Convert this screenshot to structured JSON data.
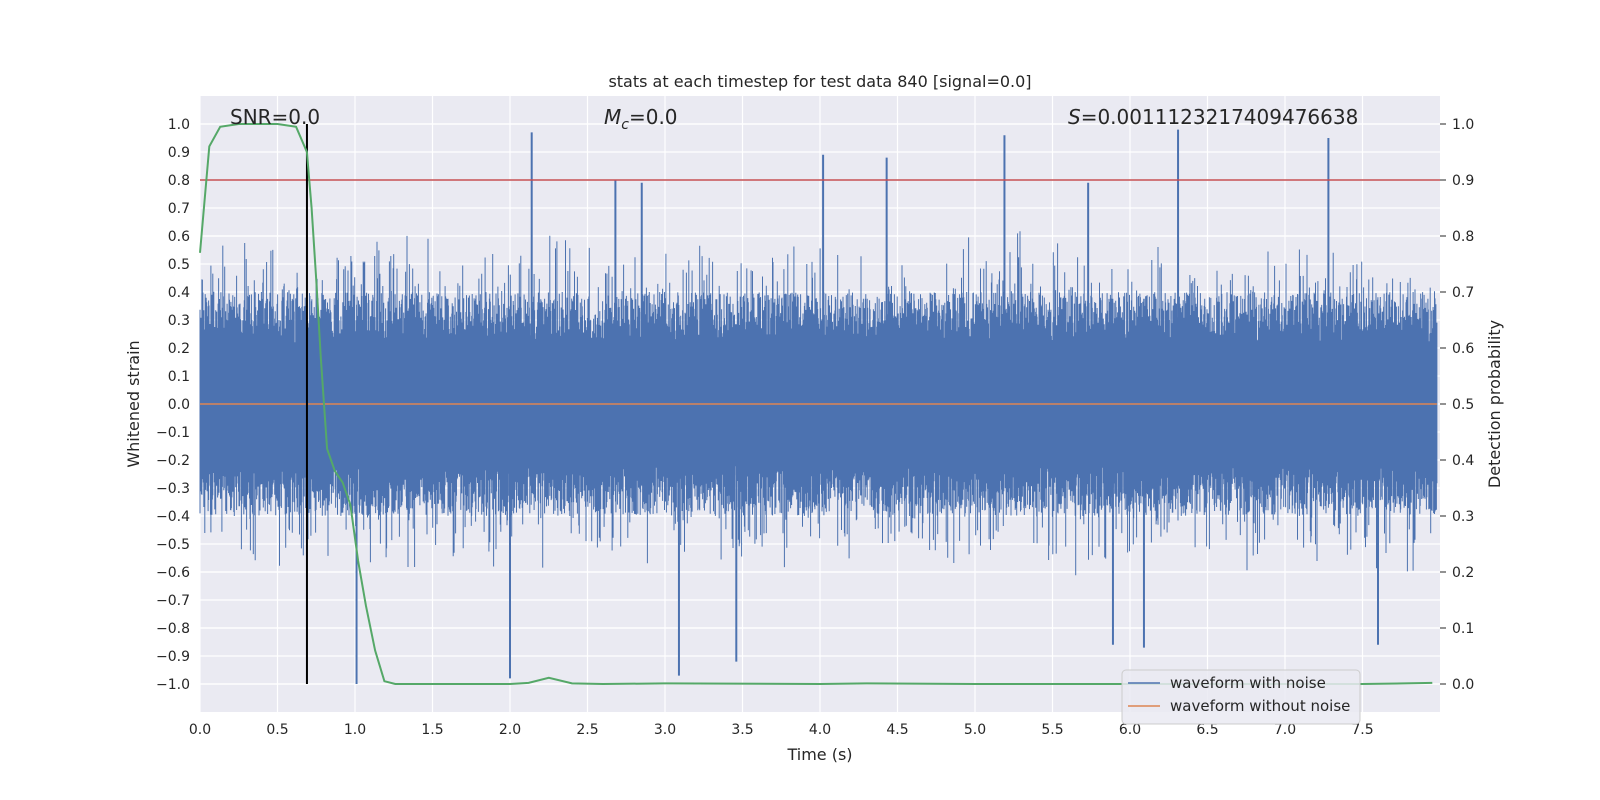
{
  "chart_data": {
    "type": "line",
    "title": "stats at each timestep for test data 840 [signal=0.0]",
    "xlabel": "Time (s)",
    "ylabel_left": "Whitened strain",
    "ylabel_right": "Detection probability",
    "xlim": [
      0.0,
      8.0
    ],
    "ylim_left": [
      -1.1,
      1.1
    ],
    "ylim_right": [
      -0.05,
      1.05
    ],
    "x_ticks": [
      "0.0",
      "0.5",
      "1.0",
      "1.5",
      "2.0",
      "2.5",
      "3.0",
      "3.5",
      "4.0",
      "4.5",
      "5.0",
      "5.5",
      "6.0",
      "6.5",
      "7.0",
      "7.5"
    ],
    "y_left_ticks": [
      "1.0",
      "0.9",
      "0.8",
      "0.7",
      "0.6",
      "0.5",
      "0.4",
      "0.3",
      "0.2",
      "0.1",
      "0.0",
      "−0.1",
      "−0.2",
      "−0.3",
      "−0.4",
      "−0.5",
      "−0.6",
      "−0.7",
      "−0.8",
      "−0.9",
      "−1.0"
    ],
    "y_right_ticks": [
      "1.0",
      "0.9",
      "0.8",
      "0.7",
      "0.6",
      "0.5",
      "0.4",
      "0.3",
      "0.2",
      "0.1",
      "0.0"
    ],
    "annotations": {
      "snr": "SNR=0.0",
      "mc_symbol": "M",
      "mc_sub": "c",
      "mc_value": "=0.0",
      "s_symbol": "S",
      "s_value": "=0.0011123217409476638"
    },
    "legend": {
      "location": "lower-right",
      "entries": [
        {
          "name": "waveform with noise",
          "color": "#4c72b0"
        },
        {
          "name": "waveform without noise",
          "color": "#dd8452"
        }
      ]
    },
    "series": [
      {
        "name": "waveform with noise",
        "axis": "left",
        "color": "#4c72b0",
        "description": "noisy whitened strain sampled densely over 0-8 s",
        "envelope_peaks": [
          {
            "x": 2.14,
            "y": 0.97
          },
          {
            "x": 2.68,
            "y": 0.8
          },
          {
            "x": 2.85,
            "y": 0.79
          },
          {
            "x": 4.02,
            "y": 0.89
          },
          {
            "x": 4.43,
            "y": 0.88
          },
          {
            "x": 5.19,
            "y": 0.96
          },
          {
            "x": 5.73,
            "y": 0.79
          },
          {
            "x": 6.31,
            "y": 0.98
          },
          {
            "x": 7.28,
            "y": 0.95
          },
          {
            "x": 1.01,
            "y": -1.0
          },
          {
            "x": 2.0,
            "y": -0.98
          },
          {
            "x": 3.09,
            "y": -0.97
          },
          {
            "x": 3.46,
            "y": -0.92
          },
          {
            "x": 5.89,
            "y": -0.86
          },
          {
            "x": 6.09,
            "y": -0.87
          },
          {
            "x": 7.6,
            "y": -0.86
          }
        ]
      },
      {
        "name": "waveform without noise",
        "axis": "left",
        "color": "#dd8452",
        "x": [
          0.0,
          8.0
        ],
        "y": [
          0.0,
          0.0
        ]
      },
      {
        "name": "detection probability",
        "axis": "right",
        "color": "#55a868",
        "x": [
          0.0,
          0.06,
          0.13,
          0.25,
          0.4,
          0.5,
          0.62,
          0.69,
          0.72,
          0.75,
          0.78,
          0.82,
          0.87,
          0.92,
          0.97,
          1.02,
          1.07,
          1.13,
          1.19,
          1.26,
          1.5,
          2.0,
          2.12,
          2.25,
          2.4,
          2.6,
          3.0,
          4.0,
          4.3,
          5.0,
          6.0,
          7.0,
          7.5,
          7.95
        ],
        "y": [
          0.77,
          0.96,
          0.995,
          1.0,
          1.0,
          1.0,
          0.995,
          0.95,
          0.85,
          0.72,
          0.58,
          0.42,
          0.38,
          0.36,
          0.32,
          0.22,
          0.14,
          0.06,
          0.005,
          0.0,
          0.0,
          0.0,
          0.002,
          0.011,
          0.001,
          0.0,
          0.001,
          0.0,
          0.001,
          0.0,
          0.0,
          0.0,
          0.0,
          0.002
        ]
      },
      {
        "name": "threshold",
        "axis": "right",
        "color": "#c44e52",
        "x": [
          0.0,
          8.0
        ],
        "y": [
          0.9,
          0.9
        ]
      },
      {
        "name": "marker line",
        "axis": "left",
        "color": "#000000",
        "x": [
          0.69,
          0.69
        ],
        "y": [
          -1.0,
          1.0
        ]
      }
    ]
  }
}
